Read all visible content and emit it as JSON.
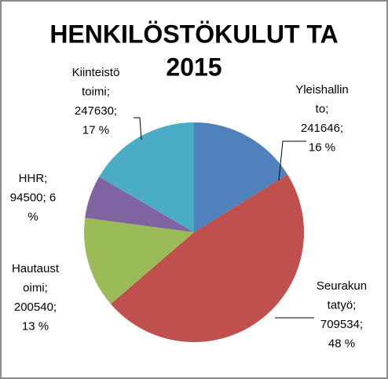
{
  "chart_data": {
    "type": "pie",
    "title_lines": [
      "HENKILÖSTÖKULUT TA",
      "2015"
    ],
    "values": [
      241646,
      709534,
      200540,
      94500,
      247630
    ],
    "colors": [
      "#4f81bd",
      "#c0504d",
      "#9bbb59",
      "#8064a2",
      "#4bacc6"
    ],
    "data_labels": [
      [
        "Yleishallin",
        "to;",
        "241646;",
        "16 %"
      ],
      [
        "Seurakun",
        "tatyö;",
        "709534;",
        "48 %"
      ],
      [
        "Hautaust",
        "oimi;",
        "200540;",
        "13 %"
      ],
      [
        "HHR;",
        "94500; 6",
        "%"
      ],
      [
        "Kiinteistö",
        "toimi;",
        "247630;",
        "17 %"
      ]
    ]
  }
}
